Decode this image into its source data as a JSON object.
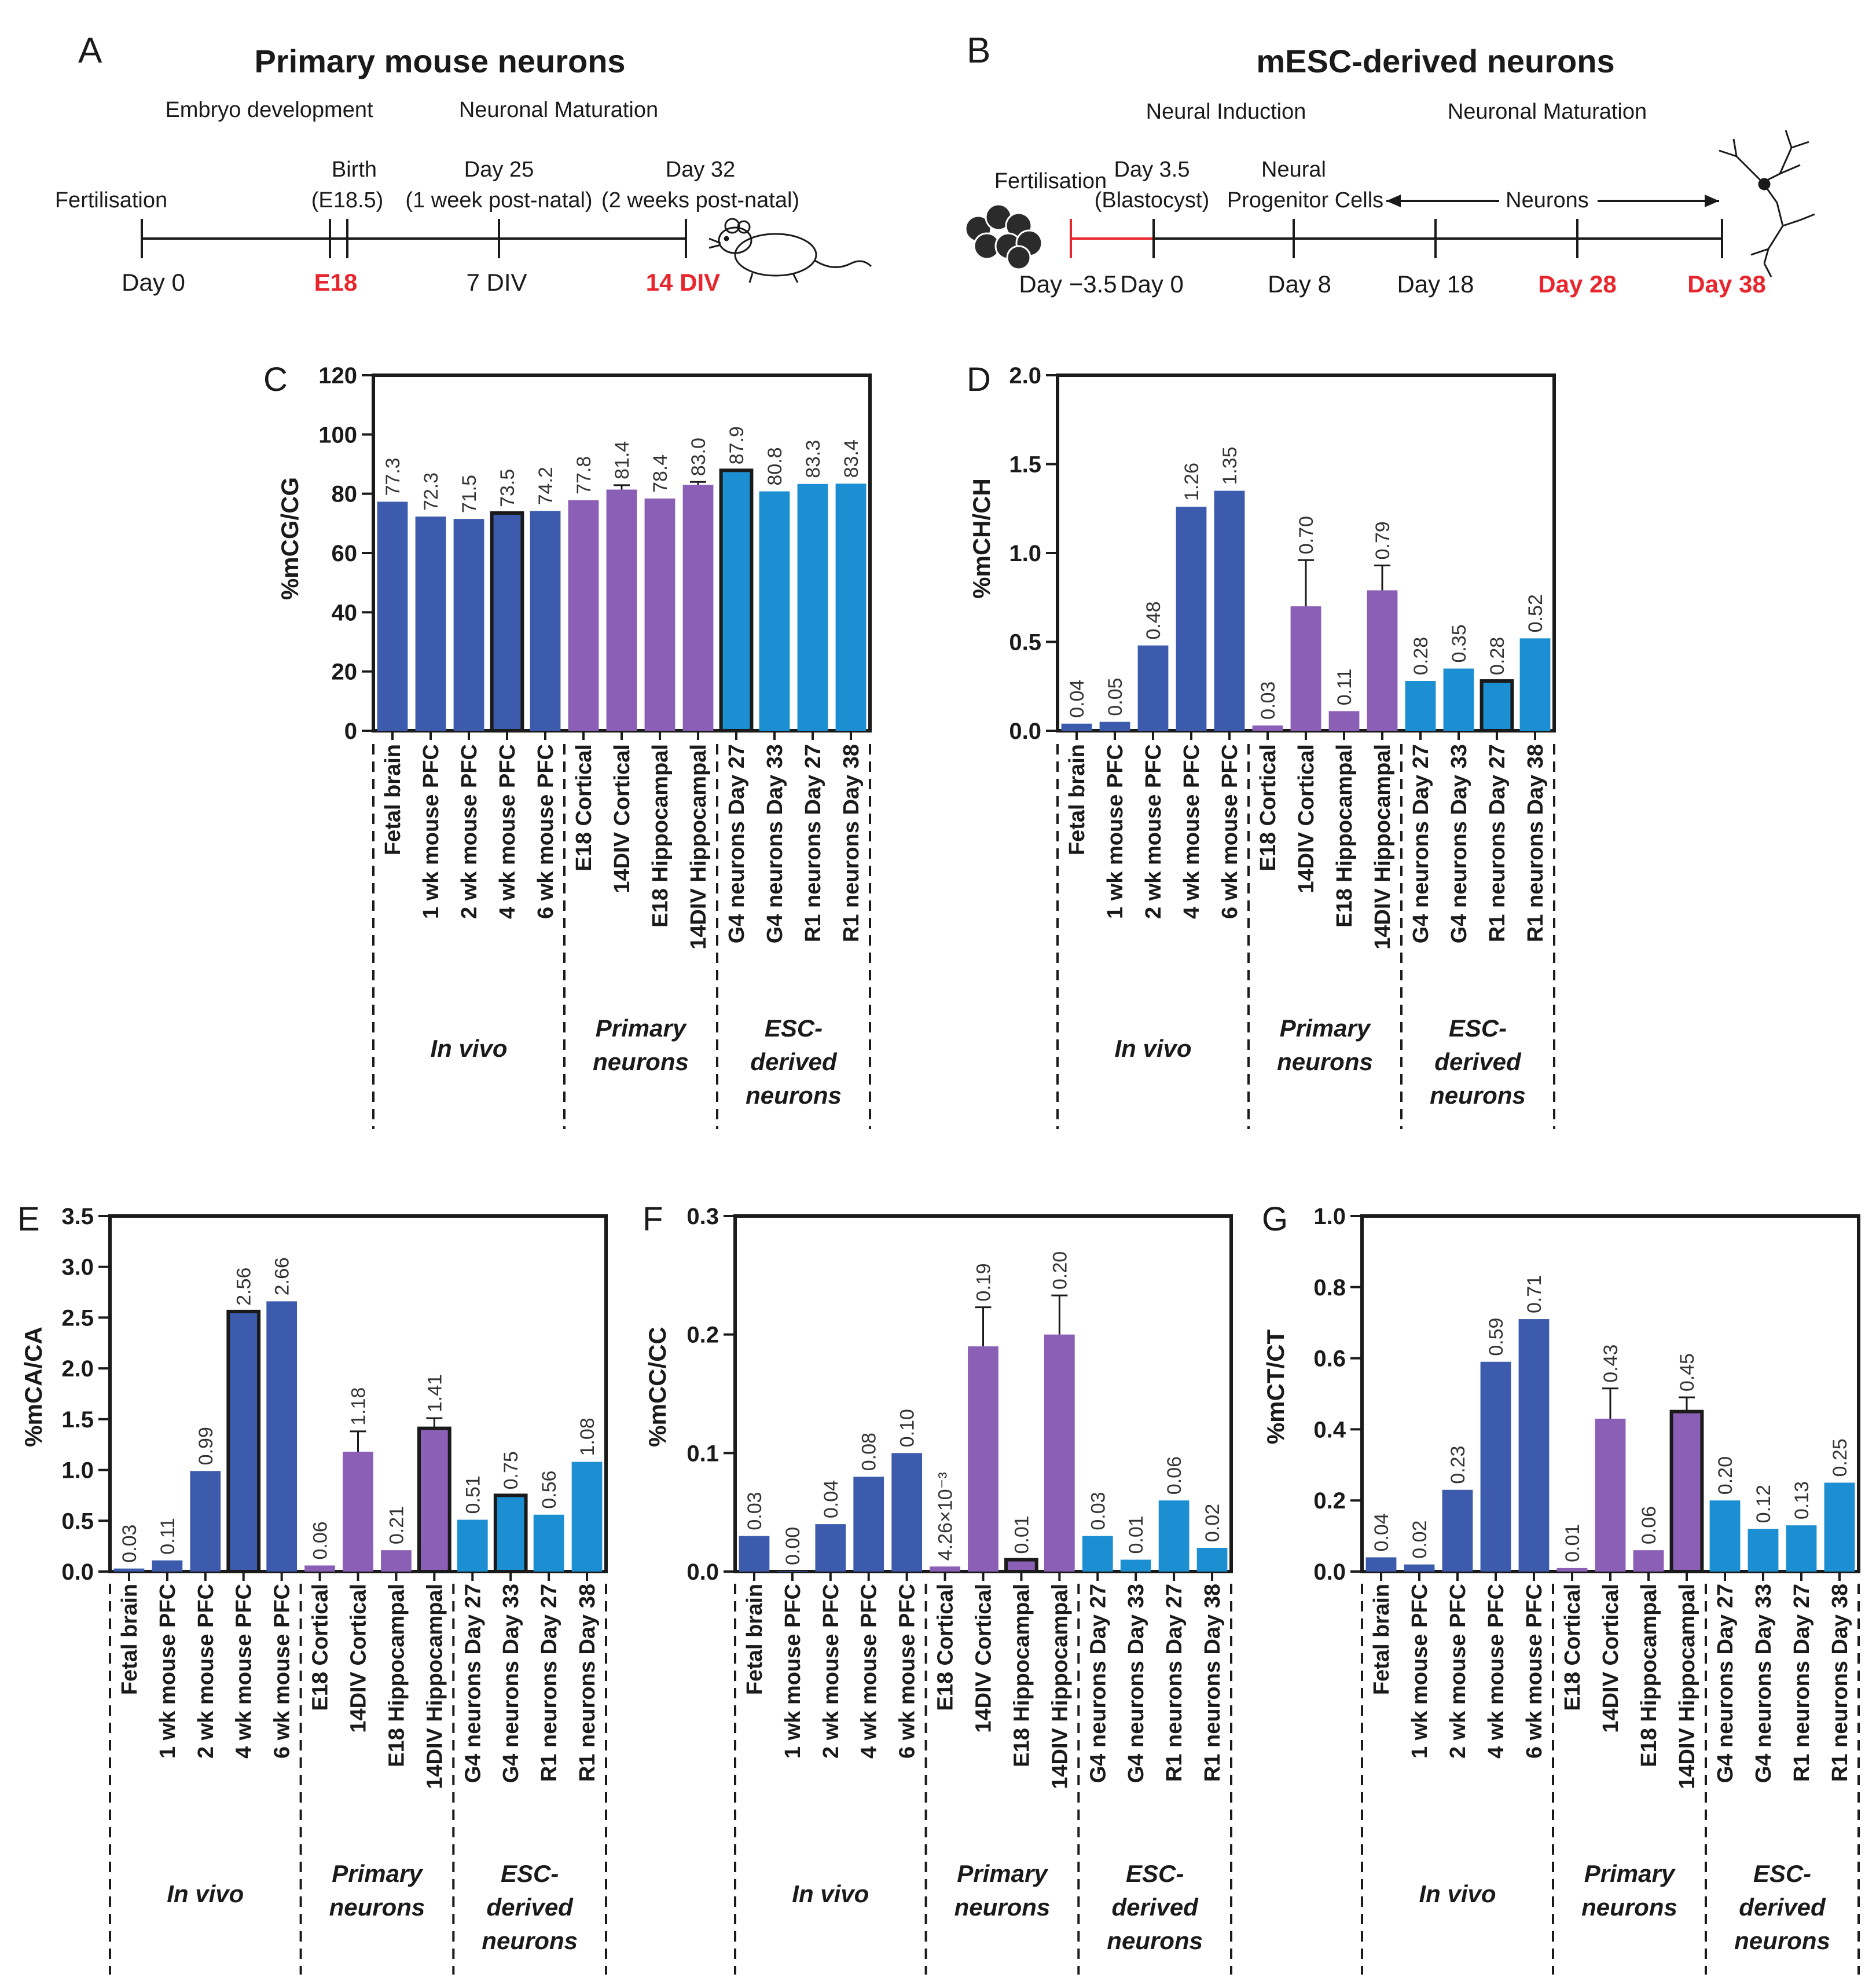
{
  "colors": {
    "invivo": "#3c5bac",
    "primary": "#8b5fb5",
    "esc": "#1b8fd2",
    "highlight": "#e8262d",
    "axis": "#1a1a1a"
  },
  "panelA": {
    "letter": "A",
    "title": "Primary mouse neurons",
    "stage1": "Embryo development",
    "stage2": "Neuronal Maturation",
    "labels_above": [
      "Fertilisation",
      "Birth",
      "(E18.5)",
      "Day 25",
      "(1 week post-natal)",
      "Day 32",
      "(2 weeks post-natal)"
    ],
    "labels_below": [
      "Day 0",
      "E18",
      "7 DIV",
      "14 DIV"
    ],
    "mouse_icon": "mouse-icon"
  },
  "panelB": {
    "letter": "B",
    "title": "mESC-derived neurons",
    "stage1": "Neural Induction",
    "stage2": "Neuronal Maturation",
    "labels_above": [
      "Fertilisation",
      "Day 3.5",
      "(Blastocyst)",
      "Neural",
      "Progenitor Cells",
      "Neurons"
    ],
    "labels_below": [
      "Day −3.5",
      "Day 0",
      "Day 8",
      "Day 18",
      "Day 28",
      "Day 38"
    ],
    "embryo_icon": "embryo-icon",
    "neuron_icon": "neuron-icon"
  },
  "chart_data": [
    {
      "panel": "C",
      "type": "bar",
      "ylabel": "%mCG/CG",
      "ylim": [
        0,
        120
      ],
      "yticks": [
        "0",
        "20",
        "40",
        "60",
        "80",
        "100",
        "120"
      ],
      "ytick_values": [
        0,
        20,
        40,
        60,
        80,
        100,
        120
      ],
      "categories": [
        "Fetal brain",
        "1 wk mouse PFC",
        "2 wk mouse PFC",
        "4 wk mouse PFC",
        "6 wk mouse PFC",
        "E18 Cortical",
        "14DIV Cortical",
        "E18 Hippocampal",
        "14DIV Hippocampal",
        "G4 neurons Day 27",
        "G4 neurons Day 33",
        "R1 neurons Day 27",
        "R1 neurons Day 38"
      ],
      "values": [
        77.3,
        72.3,
        71.5,
        73.5,
        74.2,
        77.8,
        81.4,
        78.4,
        83.0,
        87.9,
        80.8,
        83.3,
        83.4
      ],
      "labels": [
        "77.3",
        "72.3",
        "71.5",
        "73.5",
        "74.2",
        "77.8",
        "81.4",
        "78.4",
        "83.0",
        "87.9",
        "80.8",
        "83.3",
        "83.4"
      ],
      "errors": [
        0,
        0,
        0,
        0,
        0,
        0,
        1.5,
        0,
        1.0,
        0,
        0,
        0,
        0
      ],
      "highlighted": [
        3,
        9
      ],
      "groups": [
        "In vivo",
        "Primary neurons",
        "ESC-derived neurons"
      ]
    },
    {
      "panel": "D",
      "type": "bar",
      "ylabel": "%mCH/CH",
      "ylim": [
        0,
        2.0
      ],
      "yticks": [
        "0.0",
        "0.5",
        "1.0",
        "1.5",
        "2.0"
      ],
      "ytick_values": [
        0,
        0.5,
        1.0,
        1.5,
        2.0
      ],
      "categories": [
        "Fetal brain",
        "1 wk mouse PFC",
        "2 wk mouse PFC",
        "4 wk mouse PFC",
        "6 wk mouse PFC",
        "E18 Cortical",
        "14DIV Cortical",
        "E18 Hippocampal",
        "14DIV Hippocampal",
        "G4 neurons Day 27",
        "G4 neurons Day 33",
        "R1 neurons Day 27",
        "R1 neurons Day 38"
      ],
      "values": [
        0.04,
        0.05,
        0.48,
        1.26,
        1.35,
        0.03,
        0.7,
        0.11,
        0.79,
        0.28,
        0.35,
        0.28,
        0.52
      ],
      "labels": [
        "0.04",
        "0.05",
        "0.48",
        "1.26",
        "1.35",
        "0.03",
        "0.70",
        "0.11",
        "0.79",
        "0.28",
        "0.35",
        "0.28",
        "0.52"
      ],
      "errors": [
        0,
        0,
        0,
        0,
        0,
        0,
        0.26,
        0,
        0.14,
        0,
        0,
        0,
        0
      ],
      "highlighted": [
        11
      ],
      "groups": [
        "In vivo",
        "Primary neurons",
        "ESC-derived neurons"
      ]
    },
    {
      "panel": "E",
      "type": "bar",
      "ylabel": "%mCA/CA",
      "ylim": [
        0,
        3.5
      ],
      "yticks": [
        "0.0",
        "0.5",
        "1.0",
        "1.5",
        "2.0",
        "2.5",
        "3.0",
        "3.5"
      ],
      "ytick_values": [
        0,
        0.5,
        1.0,
        1.5,
        2.0,
        2.5,
        3.0,
        3.5
      ],
      "categories": [
        "Fetal brain",
        "1 wk mouse PFC",
        "2 wk mouse PFC",
        "4 wk mouse PFC",
        "6 wk mouse PFC",
        "E18 Cortical",
        "14DIV Cortical",
        "E18 Hippocampal",
        "14DIV Hippocampal",
        "G4 neurons Day 27",
        "G4 neurons Day 33",
        "R1 neurons Day 27",
        "R1 neurons Day 38"
      ],
      "values": [
        0.03,
        0.11,
        0.99,
        2.56,
        2.66,
        0.06,
        1.18,
        0.21,
        1.41,
        0.51,
        0.75,
        0.56,
        1.08
      ],
      "labels": [
        "0.03",
        "0.11",
        "0.99",
        "2.56",
        "2.66",
        "0.06",
        "1.18",
        "0.21",
        "1.41",
        "0.51",
        "0.75",
        "0.56",
        "1.08"
      ],
      "errors": [
        0,
        0,
        0,
        0,
        0,
        0,
        0.2,
        0,
        0.1,
        0,
        0,
        0,
        0
      ],
      "highlighted": [
        3,
        8,
        10
      ],
      "groups": [
        "In vivo",
        "Primary neurons",
        "ESC-derived neurons"
      ]
    },
    {
      "panel": "F",
      "type": "bar",
      "ylabel": "%mCC/CC",
      "ylim": [
        0,
        0.3
      ],
      "yticks": [
        "0.0",
        "0.1",
        "0.2",
        "0.3"
      ],
      "ytick_values": [
        0,
        0.1,
        0.2,
        0.3
      ],
      "categories": [
        "Fetal brain",
        "1 wk mouse PFC",
        "2 wk mouse PFC",
        "4 wk mouse PFC",
        "6 wk mouse PFC",
        "E18 Cortical",
        "14DIV Cortical",
        "E18 Hippocampal",
        "14DIV Hippocampal",
        "G4 neurons Day 27",
        "G4 neurons Day 33",
        "R1 neurons Day 27",
        "R1 neurons Day 38"
      ],
      "values": [
        0.03,
        0.0,
        0.04,
        0.08,
        0.1,
        0.00426,
        0.19,
        0.01,
        0.2,
        0.03,
        0.01,
        0.06,
        0.02
      ],
      "labels": [
        "0.03",
        "0.00",
        "0.04",
        "0.08",
        "0.10",
        "4.26×10⁻³",
        "0.19",
        "0.01",
        "0.20",
        "0.03",
        "0.01",
        "0.06",
        "0.02"
      ],
      "errors": [
        0,
        0,
        0,
        0,
        0,
        0,
        0.033,
        0,
        0.033,
        0,
        0,
        0,
        0
      ],
      "highlighted": [
        7
      ],
      "groups": [
        "In vivo",
        "Primary neurons",
        "ESC-derived neurons"
      ]
    },
    {
      "panel": "G",
      "type": "bar",
      "ylabel": "%mCT/CT",
      "ylim": [
        0,
        1.0
      ],
      "yticks": [
        "0.0",
        "0.2",
        "0.4",
        "0.6",
        "0.8",
        "1.0"
      ],
      "ytick_values": [
        0,
        0.2,
        0.4,
        0.6,
        0.8,
        1.0
      ],
      "categories": [
        "Fetal brain",
        "1 wk mouse PFC",
        "2 wk mouse PFC",
        "4 wk mouse PFC",
        "6 wk mouse PFC",
        "E18 Cortical",
        "14DIV Cortical",
        "E18 Hippocampal",
        "14DIV Hippocampal",
        "G4 neurons Day 27",
        "G4 neurons Day 33",
        "R1 neurons Day 27",
        "R1 neurons Day 38"
      ],
      "values": [
        0.04,
        0.02,
        0.23,
        0.59,
        0.71,
        0.01,
        0.43,
        0.06,
        0.45,
        0.2,
        0.12,
        0.13,
        0.25
      ],
      "labels": [
        "0.04",
        "0.02",
        "0.23",
        "0.59",
        "0.71",
        "0.01",
        "0.43",
        "0.06",
        "0.45",
        "0.20",
        "0.12",
        "0.13",
        "0.25"
      ],
      "errors": [
        0,
        0,
        0,
        0,
        0,
        0,
        0.085,
        0,
        0.04,
        0,
        0,
        0,
        0
      ],
      "highlighted": [
        8
      ],
      "groups": [
        "In vivo",
        "Primary neurons",
        "ESC-derived neurons"
      ]
    }
  ]
}
